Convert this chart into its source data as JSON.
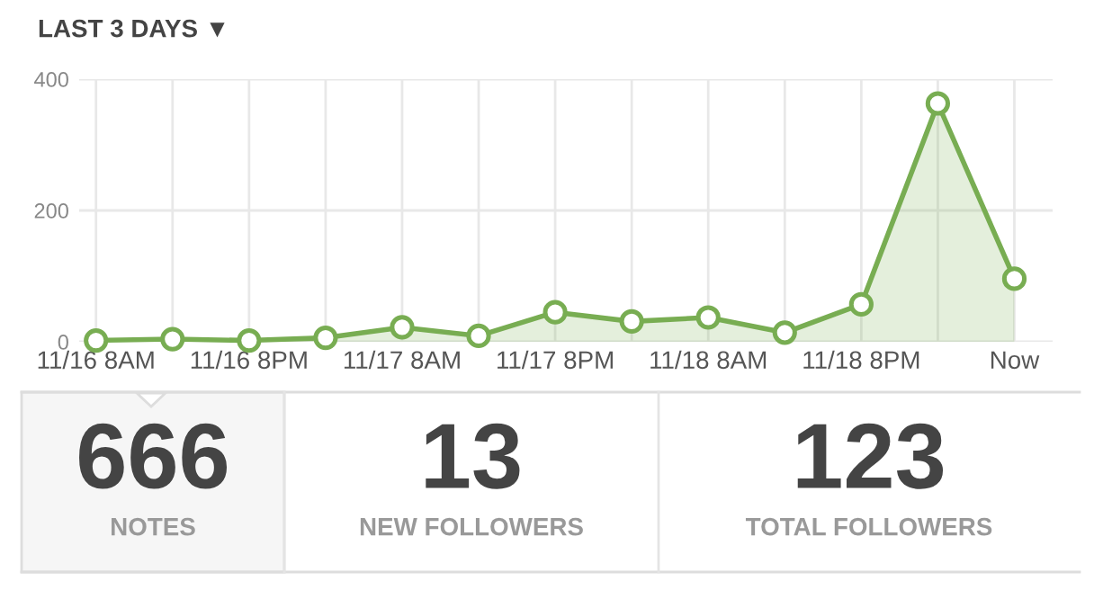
{
  "chart_data": [
    {
      "type": "area",
      "title": "LAST 3 DAYS ▼",
      "categories": [
        "11/16 8AM",
        null,
        "11/16 8PM",
        null,
        "11/17 8AM",
        null,
        "11/17 8PM",
        null,
        "11/18 8AM",
        null,
        "11/18 8PM",
        null,
        "Now"
      ],
      "series": [
        {
          "color": "#78ad52",
          "values": [
            2,
            4,
            2,
            6,
            22,
            9,
            45,
            31,
            37,
            14,
            57,
            363,
            96
          ]
        }
      ],
      "ylim": [
        0,
        400
      ],
      "yticks": [
        0,
        200,
        400
      ],
      "grid": true,
      "marker": "circle"
    },
    {
      "type": "other",
      "annotations": [
        "666",
        "NOTES",
        "13",
        "NEW FOLLOWERS",
        "123",
        "TOTAL FOLLOWERS"
      ]
    }
  ]
}
